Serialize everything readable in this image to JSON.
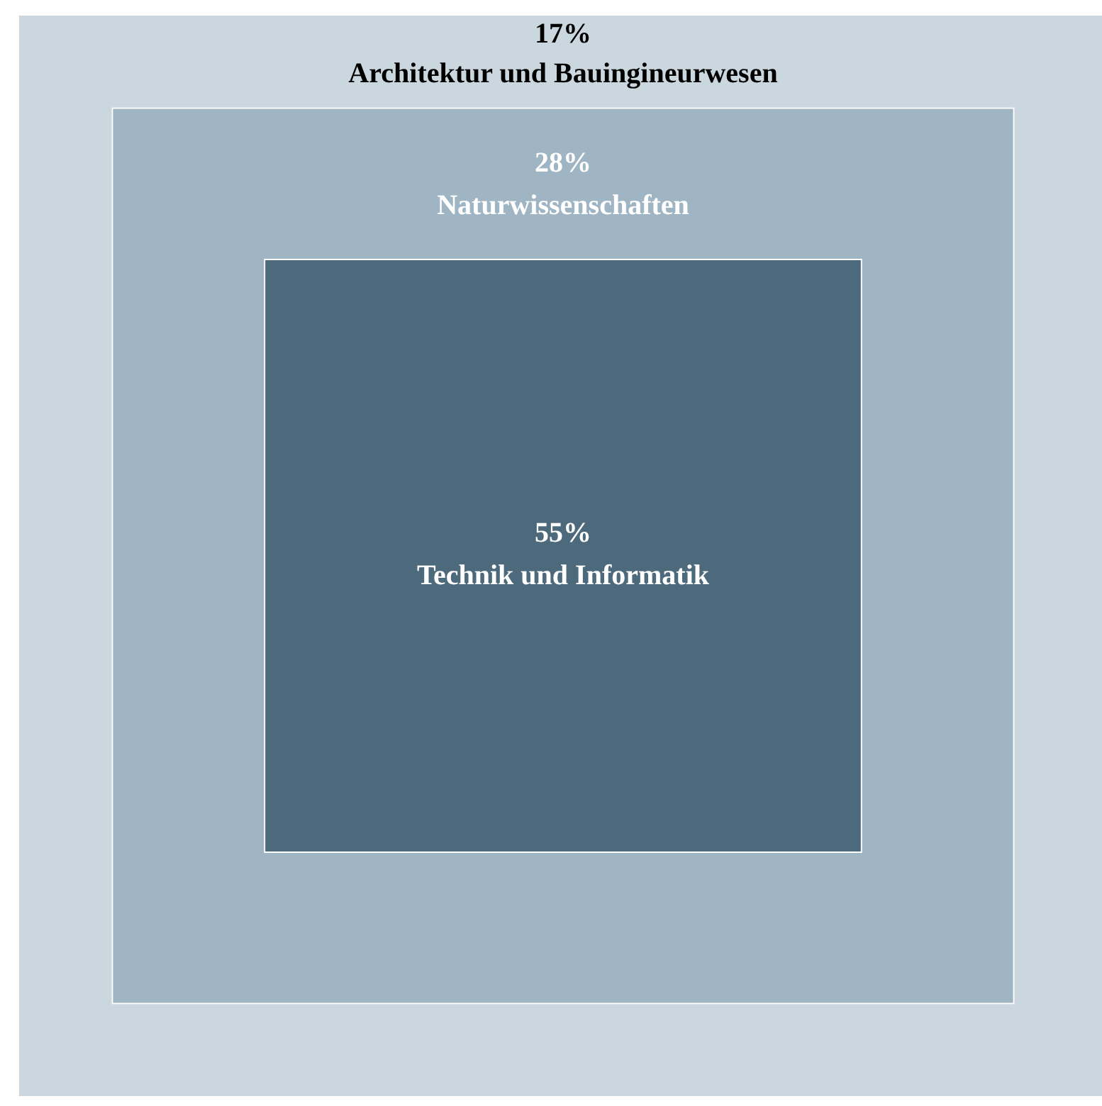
{
  "chart_data": {
    "type": "other",
    "categories": [
      "Architektur und Bauingineurwesen",
      "Naturwissenschaften",
      "Technik und Informatik"
    ],
    "values": [
      17,
      28,
      55
    ],
    "value_labels": [
      "17%",
      "28%",
      "55%"
    ],
    "colors": [
      "#cbd7df",
      "#a0b5c3",
      "#4d697c"
    ]
  }
}
